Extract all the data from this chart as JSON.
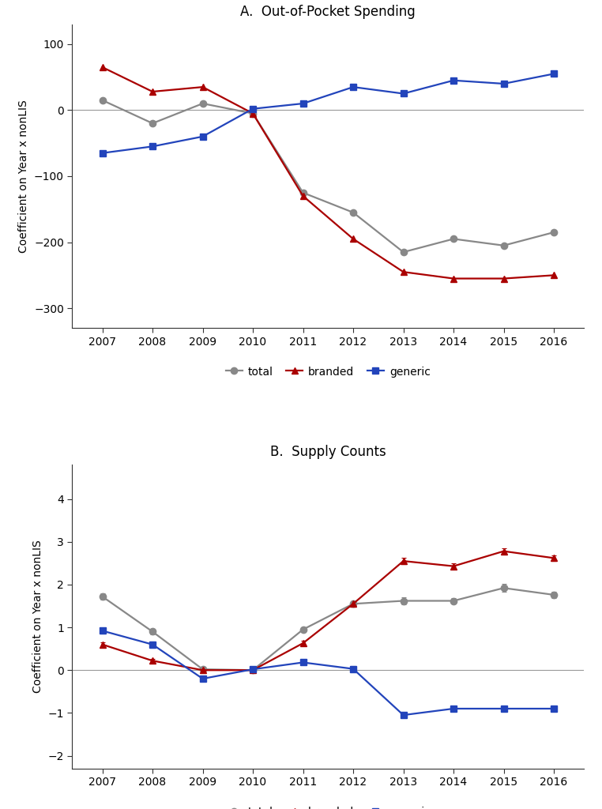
{
  "years": [
    2007,
    2008,
    2009,
    2010,
    2011,
    2012,
    2013,
    2014,
    2015,
    2016
  ],
  "panel_a": {
    "title": "A.  Out-of-Pocket Spending",
    "ylabel": "Coefficient on Year x nonLIS",
    "ylim": [
      -330,
      130
    ],
    "yticks": [
      -300,
      -200,
      -100,
      0,
      100
    ],
    "total": [
      15,
      -20,
      10,
      -5,
      -125,
      -155,
      -215,
      -195,
      -205,
      -185
    ],
    "branded": [
      65,
      28,
      35,
      -5,
      -130,
      -195,
      -245,
      -255,
      -255,
      -250
    ],
    "generic": [
      -65,
      -55,
      -40,
      2,
      10,
      35,
      25,
      45,
      40,
      55
    ]
  },
  "panel_b": {
    "title": "B.  Supply Counts",
    "ylabel": "Coefficient on Year x nonLIS",
    "ylim": [
      -2.3,
      4.8
    ],
    "yticks": [
      -2,
      -1,
      0,
      1,
      2,
      3,
      4
    ],
    "total": [
      1.72,
      0.9,
      0.02,
      0.0,
      0.95,
      1.55,
      1.62,
      1.62,
      1.92,
      1.76
    ],
    "branded": [
      0.6,
      0.22,
      0.0,
      0.0,
      0.63,
      1.55,
      2.55,
      2.43,
      2.78,
      2.62
    ],
    "generic": [
      0.92,
      0.6,
      -0.2,
      0.02,
      0.18,
      0.03,
      -1.05,
      -0.9,
      -0.9,
      -0.9
    ],
    "total_err": [
      0.08,
      0.07,
      0.05,
      0.04,
      0.06,
      0.07,
      0.08,
      0.07,
      0.09,
      0.08
    ],
    "branded_err": [
      0.05,
      0.05,
      0.04,
      0.04,
      0.05,
      0.06,
      0.07,
      0.07,
      0.06,
      0.06
    ],
    "generic_err": [
      0.06,
      0.07,
      0.04,
      0.04,
      0.05,
      0.06,
      0.06,
      0.06,
      0.06,
      0.06
    ]
  },
  "colors": {
    "total": "#888888",
    "branded": "#aa0000",
    "generic": "#2244bb"
  },
  "markers": {
    "total": "o",
    "branded": "^",
    "generic": "s"
  },
  "linewidth": 1.6,
  "markersize": 6,
  "background_color": "#ffffff",
  "zero_line_color": "#999999",
  "zero_line_lw": 0.8
}
